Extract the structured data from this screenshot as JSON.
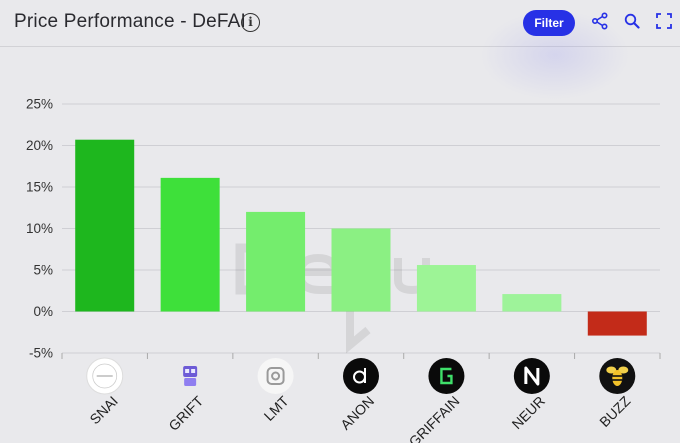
{
  "header": {
    "title": "Price Performance - DeFAI",
    "filter_label": "Filter"
  },
  "icons": {
    "info": "info-icon",
    "share": "share-icon",
    "search": "search-icon",
    "fullscreen": "fullscreen-icon"
  },
  "colors": {
    "accent": "#2731e6",
    "grid": "#cfcfd4",
    "text": "#2a2a2f"
  },
  "chart_data": {
    "type": "bar",
    "title": "Price Performance - DeFAI",
    "categories": [
      "SNAI",
      "GRIFT",
      "LMT",
      "ANON",
      "GRIFFAIN",
      "NEUR",
      "BUZZ"
    ],
    "values": [
      20.7,
      16.1,
      12.0,
      10.0,
      5.6,
      2.1,
      -2.9
    ],
    "colors": [
      "#1eb71e",
      "#3ee03a",
      "#74ed6d",
      "#8bf083",
      "#9df496",
      "#9ef39a",
      "#c32b19"
    ],
    "category_icons": [
      "snai-logo-icon",
      "grift-robot-icon",
      "lmt-logo-icon",
      "anon-logo-icon",
      "griffain-g-icon",
      "neur-n-icon",
      "buzz-bee-icon"
    ],
    "yticks": [
      "25%",
      "20%",
      "15%",
      "10%",
      "5%",
      "0%",
      "-5%"
    ],
    "ytick_values": [
      25,
      20,
      15,
      10,
      5,
      0,
      -5
    ],
    "ylim": [
      -5,
      25
    ],
    "xlabel": "",
    "ylabel": "",
    "grid": true,
    "legend": "none"
  }
}
